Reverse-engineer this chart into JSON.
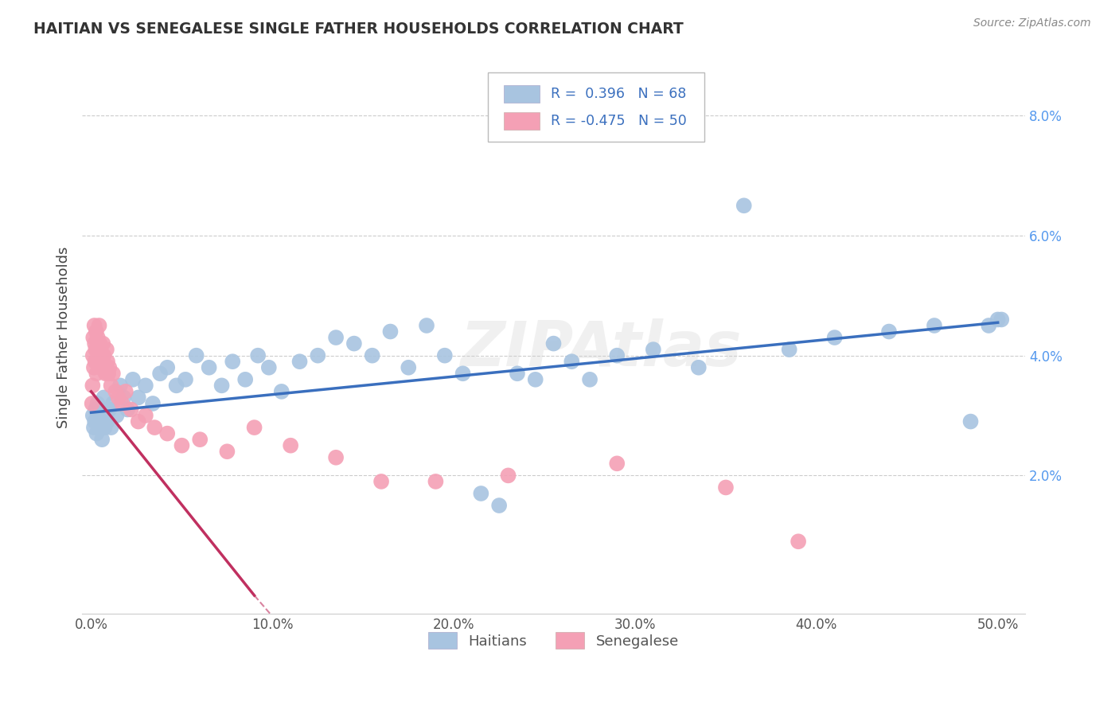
{
  "title": "HAITIAN VS SENEGALESE SINGLE FATHER HOUSEHOLDS CORRELATION CHART",
  "source": "Source: ZipAtlas.com",
  "ylabel": "Single Father Households",
  "x_tick_labels": [
    "0.0%",
    "10.0%",
    "20.0%",
    "30.0%",
    "40.0%",
    "50.0%"
  ],
  "x_tick_values": [
    0.0,
    10.0,
    20.0,
    30.0,
    40.0,
    50.0
  ],
  "y_tick_labels": [
    "2.0%",
    "4.0%",
    "6.0%",
    "8.0%"
  ],
  "y_tick_values": [
    2.0,
    4.0,
    6.0,
    8.0
  ],
  "xlim": [
    -0.5,
    51.5
  ],
  "ylim": [
    -0.3,
    8.9
  ],
  "haitian_R": 0.396,
  "haitian_N": 68,
  "senegalese_R": -0.475,
  "senegalese_N": 50,
  "haitian_color": "#a8c4e0",
  "senegalese_color": "#f4a0b5",
  "haitian_line_color": "#3a6fbe",
  "senegalese_line_color": "#c03060",
  "legend_label_haitian": "Haitians",
  "legend_label_senegalese": "Senegalese",
  "watermark": "ZIPAtlas",
  "background_color": "#ffffff",
  "grid_color": "#cccccc",
  "haitian_x": [
    0.1,
    0.15,
    0.2,
    0.25,
    0.3,
    0.35,
    0.4,
    0.45,
    0.5,
    0.55,
    0.6,
    0.65,
    0.7,
    0.75,
    0.8,
    0.9,
    1.0,
    1.1,
    1.2,
    1.4,
    1.6,
    1.8,
    2.0,
    2.3,
    2.6,
    3.0,
    3.4,
    3.8,
    4.2,
    4.7,
    5.2,
    5.8,
    6.5,
    7.2,
    7.8,
    8.5,
    9.2,
    9.8,
    10.5,
    11.5,
    12.5,
    13.5,
    14.5,
    15.5,
    16.5,
    17.5,
    18.5,
    19.5,
    20.5,
    21.5,
    22.5,
    23.5,
    24.5,
    25.5,
    26.5,
    27.5,
    29.0,
    31.0,
    33.5,
    36.0,
    38.5,
    41.0,
    44.0,
    46.5,
    48.5,
    49.5,
    50.0,
    50.2
  ],
  "haitian_y": [
    3.0,
    2.8,
    2.9,
    3.1,
    2.7,
    3.2,
    2.8,
    3.0,
    2.9,
    3.1,
    2.6,
    2.9,
    3.3,
    2.8,
    3.0,
    2.9,
    3.1,
    2.8,
    3.2,
    3.0,
    3.5,
    3.3,
    3.1,
    3.6,
    3.3,
    3.5,
    3.2,
    3.7,
    3.8,
    3.5,
    3.6,
    4.0,
    3.8,
    3.5,
    3.9,
    3.6,
    4.0,
    3.8,
    3.4,
    3.9,
    4.0,
    4.3,
    4.2,
    4.0,
    4.4,
    3.8,
    4.5,
    4.0,
    3.7,
    1.7,
    1.5,
    3.7,
    3.6,
    4.2,
    3.9,
    3.6,
    4.0,
    4.1,
    3.8,
    6.5,
    4.1,
    4.3,
    4.4,
    4.5,
    2.9,
    4.5,
    4.6,
    4.6
  ],
  "senegalese_x": [
    0.05,
    0.08,
    0.1,
    0.12,
    0.15,
    0.18,
    0.2,
    0.22,
    0.25,
    0.28,
    0.3,
    0.33,
    0.36,
    0.4,
    0.44,
    0.48,
    0.52,
    0.56,
    0.6,
    0.65,
    0.7,
    0.75,
    0.8,
    0.85,
    0.9,
    0.95,
    1.0,
    1.1,
    1.2,
    1.35,
    1.5,
    1.7,
    1.9,
    2.2,
    2.6,
    3.0,
    3.5,
    4.2,
    5.0,
    6.0,
    7.5,
    9.0,
    11.0,
    13.5,
    16.0,
    19.0,
    23.0,
    29.0,
    35.0,
    39.0
  ],
  "senegalese_y": [
    3.2,
    3.5,
    4.0,
    4.3,
    3.8,
    4.5,
    4.2,
    3.9,
    4.1,
    4.4,
    3.7,
    4.1,
    4.3,
    3.9,
    4.5,
    4.2,
    3.8,
    4.0,
    3.9,
    4.2,
    4.0,
    3.8,
    3.7,
    4.1,
    3.9,
    3.7,
    3.8,
    3.5,
    3.7,
    3.4,
    3.3,
    3.2,
    3.4,
    3.1,
    2.9,
    3.0,
    2.8,
    2.7,
    2.5,
    2.6,
    2.4,
    2.8,
    2.5,
    2.3,
    1.9,
    1.9,
    2.0,
    2.2,
    1.8,
    0.9
  ],
  "haitian_line_start_y": 3.05,
  "haitian_line_end_y": 4.55,
  "senegalese_line_start_x": 0.0,
  "senegalese_line_start_y": 3.4,
  "senegalese_line_end_x": 9.0,
  "senegalese_line_end_y": 0.0
}
